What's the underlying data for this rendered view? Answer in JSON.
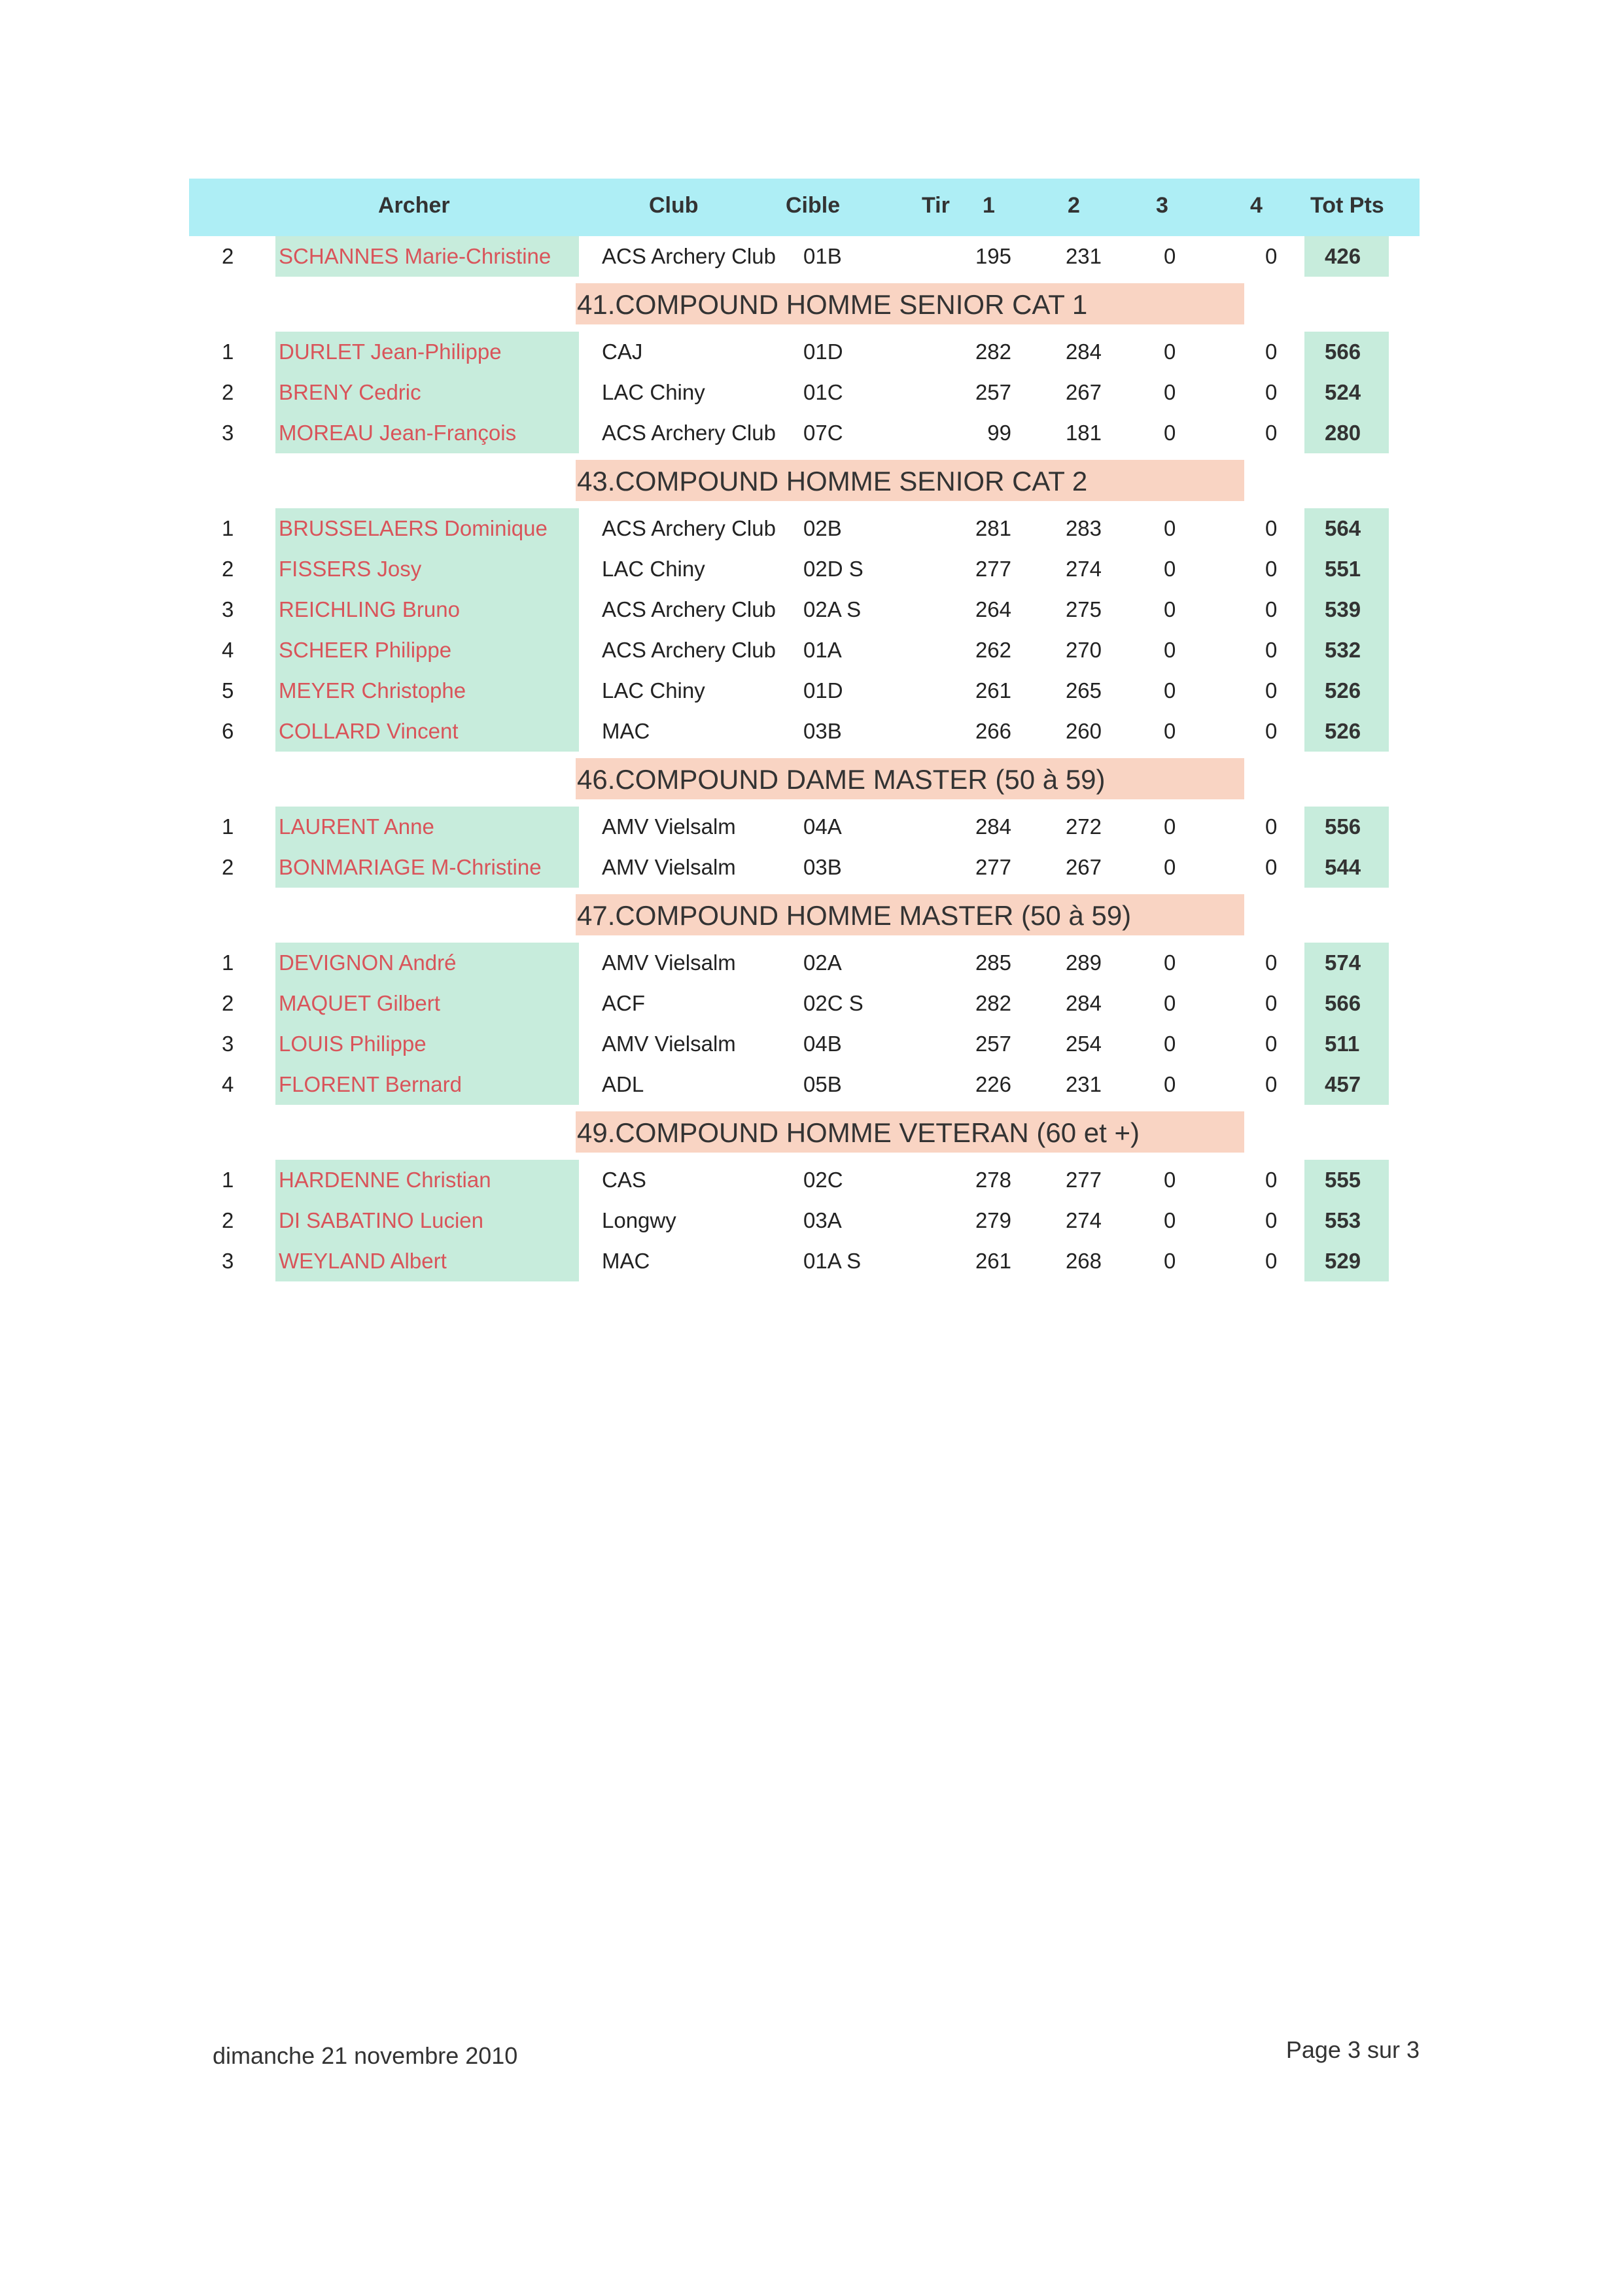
{
  "header": {
    "archer": "Archer",
    "club": "Club",
    "cible": "Cible",
    "tir": "Tir",
    "c1": "1",
    "c2": "2",
    "c3": "3",
    "c4": "4",
    "tot": "Tot Pts"
  },
  "colors": {
    "header_bg": "#aeeef5",
    "name_band": "#c7ecdc",
    "section_band": "#f9d4c3",
    "name_text": "#d9545a"
  },
  "groups": [
    {
      "title": "",
      "rows": [
        {
          "rank": "2",
          "name": "SCHANNES Marie-Christine",
          "club": "ACS Archery Club",
          "cible": "01B",
          "s1": "195",
          "s2": "231",
          "s3": "0",
          "s4": "0",
          "tot": "426"
        }
      ]
    },
    {
      "title": "41.COMPOUND HOMME SENIOR CAT 1",
      "rows": [
        {
          "rank": "1",
          "name": "DURLET Jean-Philippe",
          "club": "CAJ",
          "cible": "01D",
          "s1": "282",
          "s2": "284",
          "s3": "0",
          "s4": "0",
          "tot": "566"
        },
        {
          "rank": "2",
          "name": "BRENY Cedric",
          "club": "LAC Chiny",
          "cible": "01C",
          "s1": "257",
          "s2": "267",
          "s3": "0",
          "s4": "0",
          "tot": "524"
        },
        {
          "rank": "3",
          "name": "MOREAU Jean-François",
          "club": "ACS Archery Club",
          "cible": "07C",
          "s1": "99",
          "s2": "181",
          "s3": "0",
          "s4": "0",
          "tot": "280"
        }
      ]
    },
    {
      "title": "43.COMPOUND HOMME SENIOR CAT 2",
      "rows": [
        {
          "rank": "1",
          "name": "BRUSSELAERS Dominique",
          "club": "ACS Archery Club",
          "cible": "02B",
          "s1": "281",
          "s2": "283",
          "s3": "0",
          "s4": "0",
          "tot": "564"
        },
        {
          "rank": "2",
          "name": "FISSERS Josy",
          "club": "LAC Chiny",
          "cible": "02D S",
          "s1": "277",
          "s2": "274",
          "s3": "0",
          "s4": "0",
          "tot": "551"
        },
        {
          "rank": "3",
          "name": "REICHLING Bruno",
          "club": "ACS Archery Club",
          "cible": "02A S",
          "s1": "264",
          "s2": "275",
          "s3": "0",
          "s4": "0",
          "tot": "539"
        },
        {
          "rank": "4",
          "name": "SCHEER Philippe",
          "club": "ACS Archery Club",
          "cible": "01A",
          "s1": "262",
          "s2": "270",
          "s3": "0",
          "s4": "0",
          "tot": "532"
        },
        {
          "rank": "5",
          "name": "MEYER Christophe",
          "club": "LAC Chiny",
          "cible": "01D",
          "s1": "261",
          "s2": "265",
          "s3": "0",
          "s4": "0",
          "tot": "526"
        },
        {
          "rank": "6",
          "name": "COLLARD Vincent",
          "club": "MAC",
          "cible": "03B",
          "s1": "266",
          "s2": "260",
          "s3": "0",
          "s4": "0",
          "tot": "526"
        }
      ]
    },
    {
      "title": "46.COMPOUND DAME MASTER (50 à 59)",
      "rows": [
        {
          "rank": "1",
          "name": "LAURENT Anne",
          "club": "AMV Vielsalm",
          "cible": "04A",
          "s1": "284",
          "s2": "272",
          "s3": "0",
          "s4": "0",
          "tot": "556"
        },
        {
          "rank": "2",
          "name": "BONMARIAGE M-Christine",
          "club": "AMV Vielsalm",
          "cible": "03B",
          "s1": "277",
          "s2": "267",
          "s3": "0",
          "s4": "0",
          "tot": "544"
        }
      ]
    },
    {
      "title": "47.COMPOUND HOMME MASTER (50 à 59)",
      "rows": [
        {
          "rank": "1",
          "name": "DEVIGNON André",
          "club": "AMV Vielsalm",
          "cible": "02A",
          "s1": "285",
          "s2": "289",
          "s3": "0",
          "s4": "0",
          "tot": "574"
        },
        {
          "rank": "2",
          "name": "MAQUET Gilbert",
          "club": "ACF",
          "cible": "02C S",
          "s1": "282",
          "s2": "284",
          "s3": "0",
          "s4": "0",
          "tot": "566"
        },
        {
          "rank": "3",
          "name": "LOUIS Philippe",
          "club": "AMV Vielsalm",
          "cible": "04B",
          "s1": "257",
          "s2": "254",
          "s3": "0",
          "s4": "0",
          "tot": "511"
        },
        {
          "rank": "4",
          "name": "FLORENT Bernard",
          "club": "ADL",
          "cible": "05B",
          "s1": "226",
          "s2": "231",
          "s3": "0",
          "s4": "0",
          "tot": "457"
        }
      ]
    },
    {
      "title": "49.COMPOUND HOMME VETERAN (60 et +)",
      "rows": [
        {
          "rank": "1",
          "name": "HARDENNE Christian",
          "club": "CAS",
          "cible": "02C",
          "s1": "278",
          "s2": "277",
          "s3": "0",
          "s4": "0",
          "tot": "555"
        },
        {
          "rank": "2",
          "name": "DI SABATINO Lucien",
          "club": "Longwy",
          "cible": "03A",
          "s1": "279",
          "s2": "274",
          "s3": "0",
          "s4": "0",
          "tot": "553"
        },
        {
          "rank": "3",
          "name": "WEYLAND Albert",
          "club": "MAC",
          "cible": "01A S",
          "s1": "261",
          "s2": "268",
          "s3": "0",
          "s4": "0",
          "tot": "529"
        }
      ]
    }
  ],
  "footer": {
    "date": "dimanche 21 novembre 2010",
    "page": "Page 3 sur 3"
  }
}
